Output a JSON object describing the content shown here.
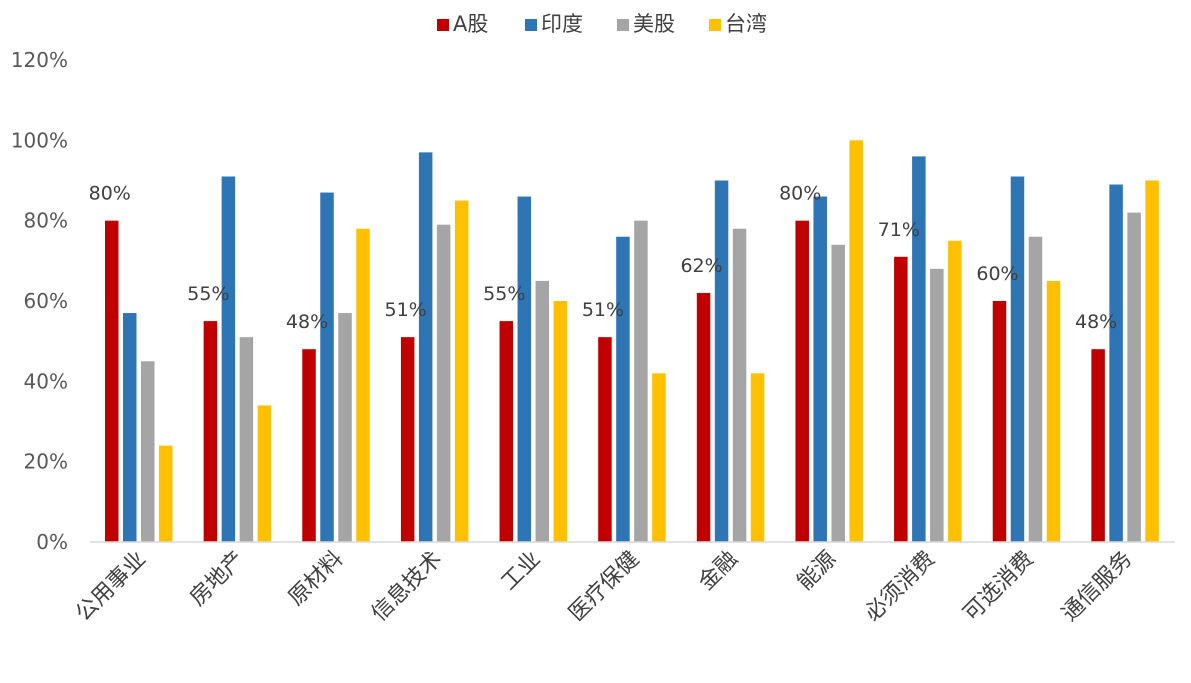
{
  "chart_data": {
    "type": "bar",
    "title": "",
    "xlabel": "",
    "ylabel": "",
    "ylim": [
      0,
      120
    ],
    "y_ticks": [
      "0%",
      "20%",
      "40%",
      "60%",
      "80%",
      "100%",
      "120%"
    ],
    "grid": false,
    "legend_position": "top-center",
    "categories": [
      "公用事业",
      "房地产",
      "原材料",
      "信息技术",
      "工业",
      "医疗保健",
      "金融",
      "能源",
      "必须消费",
      "可选消费",
      "通信服务"
    ],
    "series": [
      {
        "name": "A股",
        "color": "#C00000",
        "values": [
          80,
          55,
          48,
          51,
          55,
          51,
          62,
          80,
          71,
          60,
          48
        ]
      },
      {
        "name": "印度",
        "color": "#2E75B6",
        "values": [
          57,
          91,
          87,
          97,
          86,
          76,
          90,
          86,
          96,
          91,
          89
        ]
      },
      {
        "name": "美股",
        "color": "#A5A5A5",
        "values": [
          45,
          51,
          57,
          79,
          65,
          80,
          78,
          74,
          68,
          76,
          82
        ]
      },
      {
        "name": "台湾",
        "color": "#FFC000",
        "values": [
          24,
          34,
          78,
          85,
          60,
          42,
          42,
          100,
          75,
          65,
          90
        ]
      }
    ],
    "data_labels": {
      "series": "A股",
      "labels": [
        "80%",
        "55%",
        "48%",
        "51%",
        "55%",
        "51%",
        "62%",
        "80%",
        "71%",
        "60%",
        "48%"
      ]
    }
  }
}
